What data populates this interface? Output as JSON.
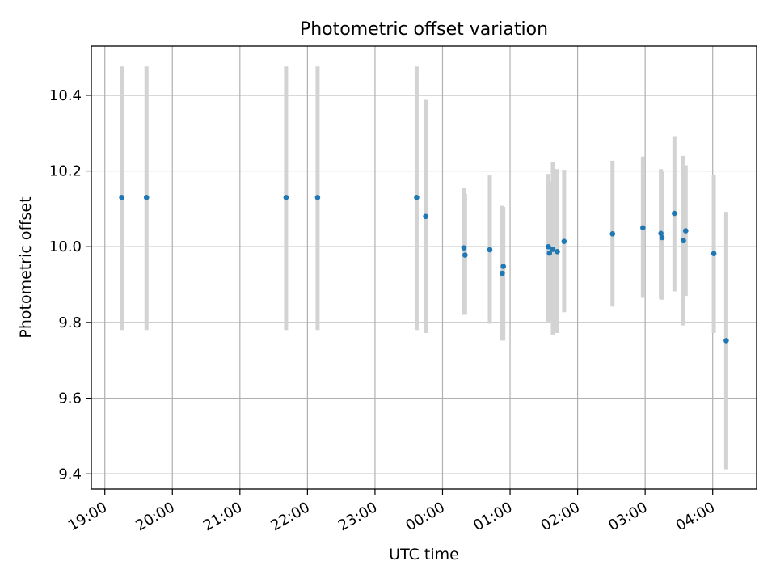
{
  "chart_data": {
    "type": "scatter",
    "title": "Photometric offset variation",
    "xlabel": "UTC time",
    "ylabel": "Photometric offset",
    "x_axis_kind": "time",
    "x_start_time": "19:00",
    "xlim": [
      "18:48",
      "04:39"
    ],
    "ylim": [
      9.36,
      10.53
    ],
    "grid": true,
    "x_ticks": [
      "19:00",
      "20:00",
      "21:00",
      "22:00",
      "23:00",
      "00:00",
      "01:00",
      "02:00",
      "03:00",
      "04:00"
    ],
    "y_ticks": [
      "9.4",
      "9.6",
      "9.8",
      "10.0",
      "10.2",
      "10.4"
    ],
    "point_color": "#1f77b4",
    "errorbar_color": "#d3d3d3",
    "series": [
      {
        "points": [
          {
            "time": "19:15",
            "y": 10.13,
            "low": 9.78,
            "high": 10.476
          },
          {
            "time": "19:37",
            "y": 10.13,
            "low": 9.78,
            "high": 10.476
          },
          {
            "time": "21:41",
            "y": 10.13,
            "low": 9.78,
            "high": 10.476
          },
          {
            "time": "22:09",
            "y": 10.13,
            "low": 9.78,
            "high": 10.476
          },
          {
            "time": "23:37",
            "y": 10.13,
            "low": 9.78,
            "high": 10.476
          },
          {
            "time": "23:45",
            "y": 10.08,
            "low": 9.772,
            "high": 10.388
          },
          {
            "time": "00:19",
            "y": 9.997,
            "low": 9.82,
            "high": 10.155
          },
          {
            "time": "00:20",
            "y": 9.978,
            "low": 9.82,
            "high": 10.14
          },
          {
            "time": "00:42",
            "y": 9.992,
            "low": 9.797,
            "high": 10.188
          },
          {
            "time": "00:53",
            "y": 9.93,
            "low": 9.752,
            "high": 10.108
          },
          {
            "time": "00:54",
            "y": 9.948,
            "low": 9.752,
            "high": 10.105
          },
          {
            "time": "01:34",
            "y": 10.0,
            "low": 9.8,
            "high": 10.192
          },
          {
            "time": "01:35",
            "y": 9.983,
            "low": 9.798,
            "high": 10.172
          },
          {
            "time": "01:38",
            "y": 9.993,
            "low": 9.768,
            "high": 10.223
          },
          {
            "time": "01:42",
            "y": 9.987,
            "low": 9.772,
            "high": 10.205
          },
          {
            "time": "01:48",
            "y": 10.014,
            "low": 9.827,
            "high": 10.203
          },
          {
            "time": "02:31",
            "y": 10.034,
            "low": 9.842,
            "high": 10.227
          },
          {
            "time": "02:58",
            "y": 10.05,
            "low": 9.865,
            "high": 10.238
          },
          {
            "time": "03:14",
            "y": 10.035,
            "low": 9.862,
            "high": 10.205
          },
          {
            "time": "03:15",
            "y": 10.024,
            "low": 9.86,
            "high": 10.198
          },
          {
            "time": "03:26",
            "y": 10.088,
            "low": 9.882,
            "high": 10.292
          },
          {
            "time": "03:34",
            "y": 10.016,
            "low": 9.792,
            "high": 10.24
          },
          {
            "time": "03:36",
            "y": 10.042,
            "low": 9.87,
            "high": 10.215
          },
          {
            "time": "04:01",
            "y": 9.982,
            "low": 9.772,
            "high": 10.19
          },
          {
            "time": "04:12",
            "y": 9.752,
            "low": 9.412,
            "high": 10.092
          }
        ]
      }
    ]
  }
}
